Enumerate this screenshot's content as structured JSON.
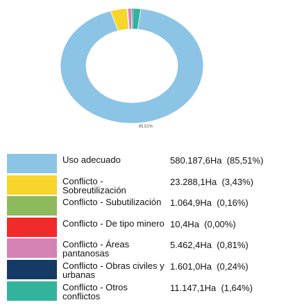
{
  "chart_data": {
    "type": "pie",
    "categories": [
      "Uso adecuado",
      "Conflicto - Sobreutilización",
      "Conflicto - Subutilización",
      "Conflicto - De tipo minero",
      "Conflicto - Áreas pantanosas",
      "Conflicto - Obras civiles y urbanas",
      "Conflicto - Otros conflictos"
    ],
    "values": [
      85.51,
      3.43,
      0.16,
      0.0,
      0.81,
      0.24,
      1.64
    ],
    "value_labels": [
      "85,51%",
      "3,43%",
      "0,16%",
      null,
      "0,81%",
      null,
      "1,64%"
    ],
    "colors": [
      "#8cc4e6",
      "#f7d52a",
      "#8dba5c",
      "#f22a2a",
      "#d483b4",
      "#153a66",
      "#33b39c"
    ],
    "legend_values": [
      "580.187,6Ha  (85,51%)",
      "23.288,1Ha  (3,43%)",
      "1.064,9Ha  (0,16%)",
      "10,4Ha  (0,00%)",
      "5.462,4Ha  (0,81%)",
      "1.601,0Ha  (0,24%)",
      "11.147,1Ha  (1,64%)"
    ],
    "donut": true
  }
}
